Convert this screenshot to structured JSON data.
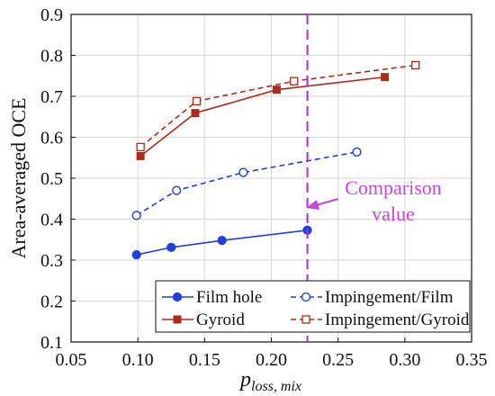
{
  "chart_data": {
    "type": "line",
    "xlabel_main": "p",
    "xlabel_sub": "loss, mix",
    "ylabel": "Area-averaged OCE",
    "xlim": [
      0.05,
      0.35
    ],
    "ylim": [
      0.1,
      0.9
    ],
    "xticks": [
      "0.05",
      "0.10",
      "0.15",
      "0.20",
      "0.25",
      "0.30",
      "0.35"
    ],
    "yticks": [
      "0.1",
      "0.2",
      "0.3",
      "0.4",
      "0.5",
      "0.6",
      "0.7",
      "0.8",
      "0.9"
    ],
    "xtick_values": [
      0.05,
      0.1,
      0.15,
      0.2,
      0.25,
      0.3,
      0.35
    ],
    "ytick_values": [
      0.1,
      0.2,
      0.3,
      0.4,
      0.5,
      0.6,
      0.7,
      0.8,
      0.9
    ],
    "grid": true,
    "series": [
      {
        "name": "Film hole",
        "color": "#1f3fe0",
        "line": "solid",
        "marker": "filled-circle",
        "x": [
          0.099,
          0.125,
          0.163,
          0.227
        ],
        "y": [
          0.313,
          0.331,
          0.348,
          0.373
        ]
      },
      {
        "name": "Impingement/Film",
        "color": "#1f3fe0",
        "line": "dashed",
        "marker": "open-circle",
        "x": [
          0.099,
          0.129,
          0.179,
          0.264
        ],
        "y": [
          0.409,
          0.47,
          0.514,
          0.564
        ]
      },
      {
        "name": "Gyroid",
        "color": "#b02a1a",
        "line": "solid",
        "marker": "filled-square",
        "x": [
          0.102,
          0.143,
          0.204,
          0.285
        ],
        "y": [
          0.554,
          0.659,
          0.716,
          0.747
        ]
      },
      {
        "name": "Impingement/Gyroid",
        "color": "#b02a1a",
        "line": "dashed",
        "marker": "open-square",
        "x": [
          0.102,
          0.144,
          0.217,
          0.308
        ],
        "y": [
          0.576,
          0.688,
          0.737,
          0.776
        ]
      }
    ],
    "reference_line": {
      "x": 0.227,
      "color": "#b02ad8",
      "style": "dashed"
    },
    "annotation": {
      "line1": "Comparison",
      "line2": "value",
      "color": "#cc44dd"
    },
    "legend_placement": "bottom-right"
  }
}
